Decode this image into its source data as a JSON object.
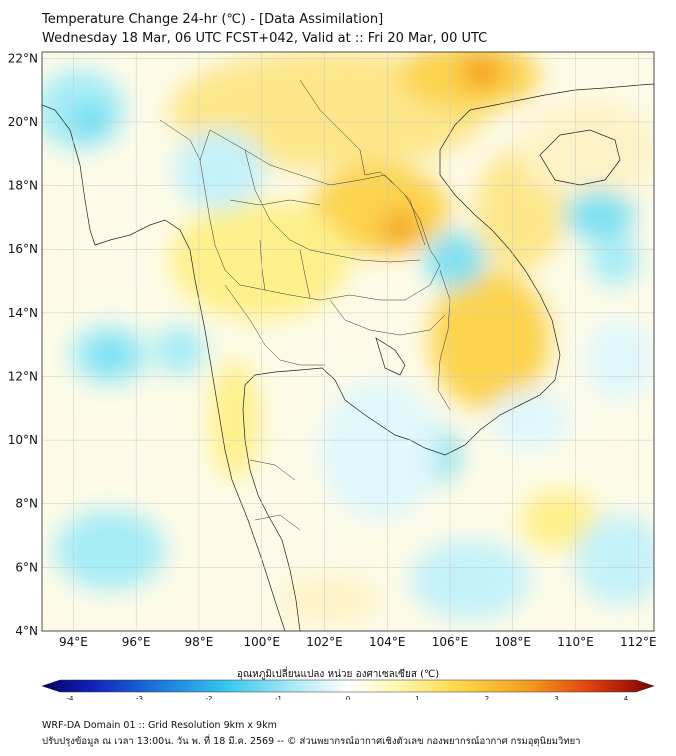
{
  "header": {
    "title": "Temperature Change 24-hr (℃) - [Data Assimilation]",
    "subtitle": "Wednesday 18 Mar, 06 UTC FCST+042, Valid at :: Fri 20 Mar, 00 UTC"
  },
  "map": {
    "lat_labels": [
      "22°N",
      "20°N",
      "18°N",
      "16°N",
      "14°N",
      "12°N",
      "10°N",
      "8°N",
      "6°N",
      "4°N"
    ],
    "lat_values": [
      22,
      20,
      18,
      16,
      14,
      12,
      10,
      8,
      6,
      4
    ],
    "lon_labels": [
      "94°E",
      "96°E",
      "98°E",
      "100°E",
      "102°E",
      "104°E",
      "106°E",
      "108°E",
      "110°E",
      "112°E"
    ],
    "lon_values": [
      94,
      96,
      98,
      100,
      102,
      104,
      106,
      108,
      110,
      112
    ],
    "extent": {
      "lon_min": 93,
      "lon_max": 112.5,
      "lat_min": 4,
      "lat_max": 22.2
    }
  },
  "colorbar": {
    "title": "อุณหภูมิเปลี่ยนแปลง หน่วย องศาเซลเซียส (℃)",
    "ticks": [
      "-4",
      "-3",
      "-2",
      "-1",
      "0",
      "1",
      "2",
      "3",
      "4"
    ],
    "tick_values": [
      -4,
      -3,
      -2,
      -1,
      0,
      1,
      2,
      3,
      4
    ],
    "range": [
      -4,
      4
    ]
  },
  "footer": {
    "line1": "WRF-DA Domain 01 :: Grid Resolution 9km x 9km",
    "line2": "ปรับปรุงข้อมูล ณ เวลา 13:00น. วัน พ. ที่ 18 มี.ค. 2569 -- © ส่วนพยากรณ์อากาศเชิงตัวเลข กองพยากรณ์อากาศ กรมอุตุนิยมวิทยา"
  }
}
